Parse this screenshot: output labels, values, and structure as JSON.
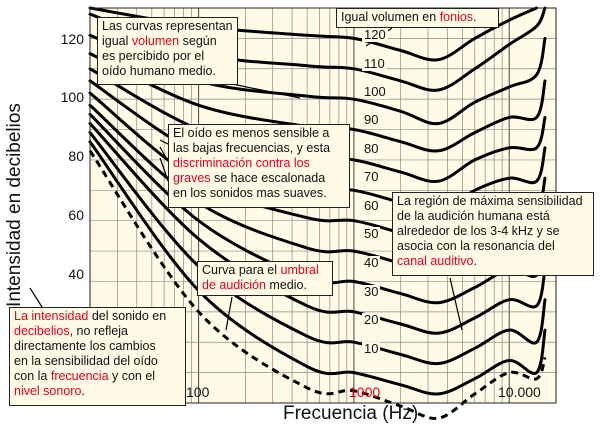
{
  "chart_data": {
    "type": "line",
    "xlabel": "Frecuencia (Hz)",
    "ylabel": "Intensidad en decibelios",
    "x_scale": "log",
    "xlim": [
      20,
      20000
    ],
    "ylim": [
      0,
      130
    ],
    "y_ticks": [
      "40",
      "60",
      "80",
      "100",
      "120"
    ],
    "x_ticks": [
      {
        "label": "100",
        "value": 100,
        "color": "#111111"
      },
      {
        "label": "1000",
        "value": 1000,
        "color": "#e8001c"
      },
      {
        "label": "10.000",
        "value": 10000,
        "color": "#111111"
      }
    ],
    "grid": true,
    "background": "#fffbe6",
    "series": [
      {
        "name": "120",
        "points": [
          [
            20,
            130
          ],
          [
            100,
            124
          ],
          [
            500,
            121
          ],
          [
            1000,
            120
          ],
          [
            2000,
            116
          ],
          [
            3500,
            113
          ],
          [
            6000,
            120
          ],
          [
            10000,
            126
          ],
          [
            15000,
            130
          ]
        ]
      },
      {
        "name": "110",
        "points": [
          [
            20,
            128
          ],
          [
            100,
            115
          ],
          [
            500,
            111
          ],
          [
            1000,
            110
          ],
          [
            2000,
            106
          ],
          [
            3500,
            103
          ],
          [
            6000,
            110
          ],
          [
            10000,
            118
          ],
          [
            15000,
            124
          ],
          [
            17000,
            130
          ]
        ]
      },
      {
        "name": "100",
        "points": [
          [
            20,
            121
          ],
          [
            100,
            106
          ],
          [
            500,
            101
          ],
          [
            1000,
            100
          ],
          [
            2000,
            96
          ],
          [
            3500,
            92
          ],
          [
            6000,
            99
          ],
          [
            10000,
            104
          ],
          [
            15000,
            108
          ],
          [
            17000,
            120
          ]
        ]
      },
      {
        "name": "90",
        "points": [
          [
            20,
            115
          ],
          [
            100,
            98
          ],
          [
            500,
            91
          ],
          [
            1000,
            90
          ],
          [
            2000,
            86
          ],
          [
            3500,
            83
          ],
          [
            6000,
            89
          ],
          [
            10000,
            94
          ],
          [
            15000,
            94
          ],
          [
            17000,
            106
          ]
        ]
      },
      {
        "name": "80",
        "points": [
          [
            20,
            110
          ],
          [
            100,
            90
          ],
          [
            500,
            81
          ],
          [
            1000,
            80
          ],
          [
            2000,
            76
          ],
          [
            3500,
            73
          ],
          [
            6000,
            80
          ],
          [
            10000,
            84
          ],
          [
            15000,
            84
          ],
          [
            17000,
            94
          ]
        ]
      },
      {
        "name": "70",
        "points": [
          [
            20,
            106
          ],
          [
            100,
            82
          ],
          [
            500,
            71
          ],
          [
            1000,
            70
          ],
          [
            2000,
            66
          ],
          [
            3500,
            63
          ],
          [
            6000,
            70
          ],
          [
            10000,
            74
          ],
          [
            15000,
            73
          ],
          [
            17000,
            84
          ]
        ]
      },
      {
        "name": "60",
        "points": [
          [
            20,
            102
          ],
          [
            100,
            73
          ],
          [
            500,
            61
          ],
          [
            1000,
            60
          ],
          [
            2000,
            56
          ],
          [
            3500,
            53
          ],
          [
            6000,
            59
          ],
          [
            10000,
            64
          ],
          [
            15000,
            63
          ],
          [
            17000,
            74
          ]
        ]
      },
      {
        "name": "50",
        "points": [
          [
            20,
            98
          ],
          [
            100,
            66
          ],
          [
            500,
            51
          ],
          [
            1000,
            50
          ],
          [
            2000,
            46
          ],
          [
            3500,
            43
          ],
          [
            6000,
            49
          ],
          [
            10000,
            54
          ],
          [
            15000,
            53
          ],
          [
            17000,
            64
          ]
        ]
      },
      {
        "name": "40",
        "points": [
          [
            20,
            95
          ],
          [
            100,
            60
          ],
          [
            500,
            41
          ],
          [
            1000,
            40
          ],
          [
            2000,
            36
          ],
          [
            3500,
            33
          ],
          [
            6000,
            38
          ],
          [
            10000,
            44
          ],
          [
            15000,
            42
          ],
          [
            17000,
            54
          ]
        ]
      },
      {
        "name": "30",
        "points": [
          [
            20,
            92
          ],
          [
            100,
            54
          ],
          [
            500,
            32
          ],
          [
            1000,
            30
          ],
          [
            2000,
            26
          ],
          [
            3500,
            23
          ],
          [
            6000,
            28
          ],
          [
            10000,
            34
          ],
          [
            15000,
            32
          ],
          [
            17000,
            44
          ]
        ]
      },
      {
        "name": "20",
        "points": [
          [
            20,
            89
          ],
          [
            100,
            45
          ],
          [
            500,
            22
          ],
          [
            1000,
            20
          ],
          [
            2000,
            16
          ],
          [
            3500,
            13
          ],
          [
            6000,
            18
          ],
          [
            10000,
            24
          ],
          [
            15000,
            20
          ],
          [
            17000,
            34
          ]
        ]
      },
      {
        "name": "10",
        "points": [
          [
            20,
            86
          ],
          [
            100,
            37
          ],
          [
            500,
            12
          ],
          [
            1000,
            10
          ],
          [
            2000,
            6
          ],
          [
            3500,
            3
          ],
          [
            6000,
            8
          ],
          [
            10000,
            14
          ],
          [
            15000,
            10
          ],
          [
            17000,
            24
          ]
        ]
      },
      {
        "name": "umbral",
        "dashed": true,
        "points": [
          [
            20,
            83
          ],
          [
            100,
            30
          ],
          [
            500,
            5
          ],
          [
            1000,
            4
          ],
          [
            2000,
            -1
          ],
          [
            3500,
            -5
          ],
          [
            6000,
            3
          ],
          [
            10000,
            10
          ],
          [
            15000,
            8
          ],
          [
            17000,
            15
          ]
        ]
      }
    ],
    "curve_labels": [
      "120",
      "110",
      "100",
      "90",
      "80",
      "70",
      "60",
      "50",
      "40",
      "30",
      "20",
      "10"
    ],
    "annotations": {
      "curvas": [
        "Las curvas representan",
        "igual ",
        "volumen",
        " según",
        "es percibido por el",
        "oído humano medio."
      ],
      "fonios": [
        "Igual volumen en ",
        "fonios",
        "."
      ],
      "graves": [
        "El oído es menos sensible a",
        "las bajas frecuencias, y esta",
        "discriminación contra los",
        "graves",
        " se hace escalonada",
        "en los sonidos mas suaves."
      ],
      "region": [
        "La región de máxima sensibilidad",
        "de la audición humana está",
        "alrededor de los 3-4 kHz y se",
        "asocia con la resonancia del",
        "canal auditivo",
        "."
      ],
      "umbral": [
        "Curva para el  ",
        "umbral",
        "de audición",
        " medio."
      ],
      "intensidad": [
        "La intensidad",
        " del sonido en",
        "decibelios",
        ", no refleja",
        "directamente los cambios",
        "en la sensibilidad del oído",
        "con la ",
        "frecuencia",
        " y con el",
        "nivel sonoro",
        "."
      ]
    }
  }
}
